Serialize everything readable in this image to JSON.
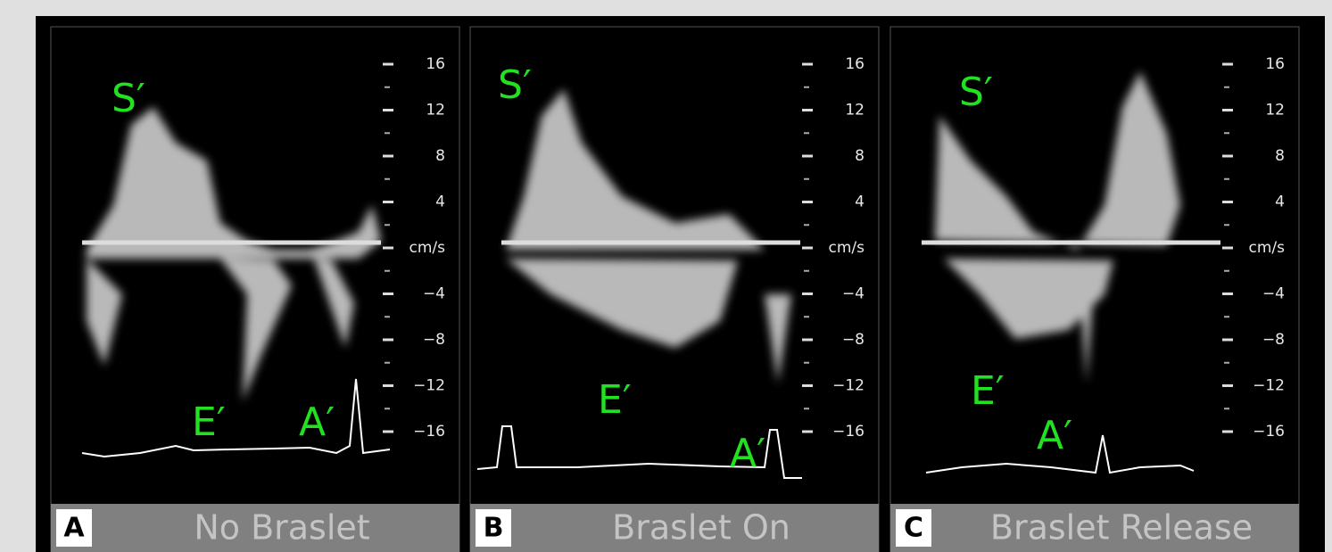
{
  "panels": [
    {
      "letter": "A",
      "caption": "No Braslet",
      "labels": [
        "S′",
        "E′",
        "A′"
      ]
    },
    {
      "letter": "B",
      "caption": "Braslet On",
      "labels": [
        "S′",
        "E′",
        "A′"
      ]
    },
    {
      "letter": "C",
      "caption": "Braslet Release",
      "labels": [
        "S′",
        "E′",
        "A′"
      ]
    }
  ],
  "scale": [
    "16",
    "12",
    "8",
    "4",
    "cm/s",
    "−4",
    "−8",
    "−12",
    "−16"
  ]
}
